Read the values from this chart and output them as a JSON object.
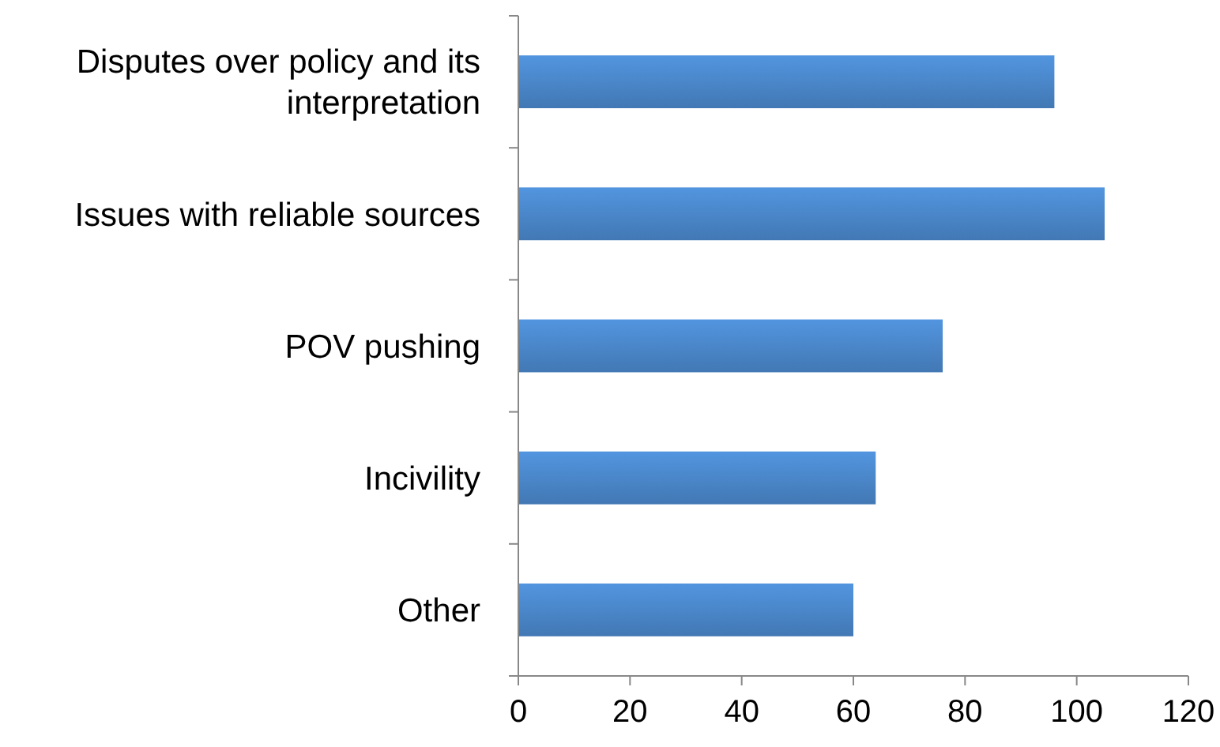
{
  "chart_data": {
    "type": "bar",
    "orientation": "horizontal",
    "categories": [
      "Disputes over policy and its interpretation",
      "Issues with reliable sources",
      "POV pushing",
      "Incivility",
      "Other"
    ],
    "values": [
      96,
      105,
      76,
      64,
      60
    ],
    "color": "#4a86c8",
    "xlim": [
      0,
      120
    ],
    "xticks": [
      0,
      20,
      40,
      60,
      80,
      100,
      120
    ],
    "grid": false
  }
}
